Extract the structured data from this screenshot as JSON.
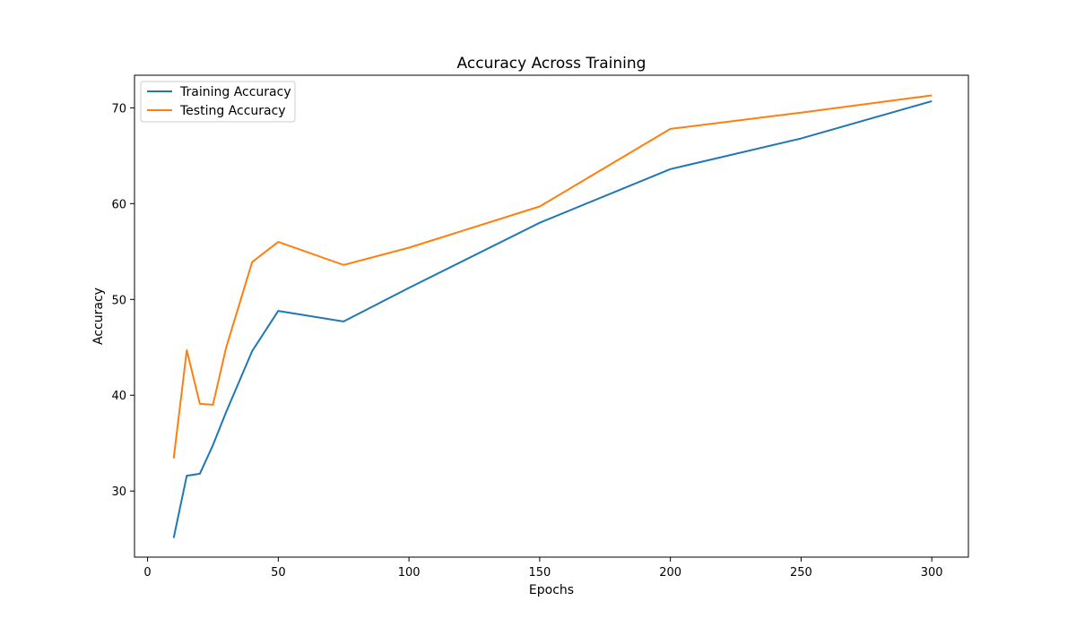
{
  "chart_data": {
    "type": "line",
    "title": "Accuracy Across Training",
    "xlabel": "Epochs",
    "ylabel": "Accuracy",
    "xlim": [
      -5,
      314
    ],
    "ylim": [
      23.1,
      73.4
    ],
    "xticks": [
      0,
      50,
      100,
      150,
      200,
      250,
      300
    ],
    "yticks": [
      30,
      40,
      50,
      60,
      70
    ],
    "grid": false,
    "legend_position": "upper left",
    "x": [
      10,
      15,
      20,
      25,
      30,
      40,
      50,
      75,
      100,
      150,
      200,
      250,
      300
    ],
    "series": [
      {
        "name": "Training Accuracy",
        "color": "#1f77b4",
        "values": [
          25.1,
          31.6,
          31.8,
          34.8,
          38.2,
          44.6,
          48.8,
          47.7,
          51.2,
          58.0,
          63.6,
          66.8,
          70.7
        ]
      },
      {
        "name": "Testing Accuracy",
        "color": "#ff7f0e",
        "values": [
          33.4,
          44.7,
          39.1,
          39.0,
          44.9,
          53.9,
          56.0,
          53.6,
          55.4,
          59.7,
          67.8,
          69.5,
          71.3
        ]
      }
    ]
  }
}
